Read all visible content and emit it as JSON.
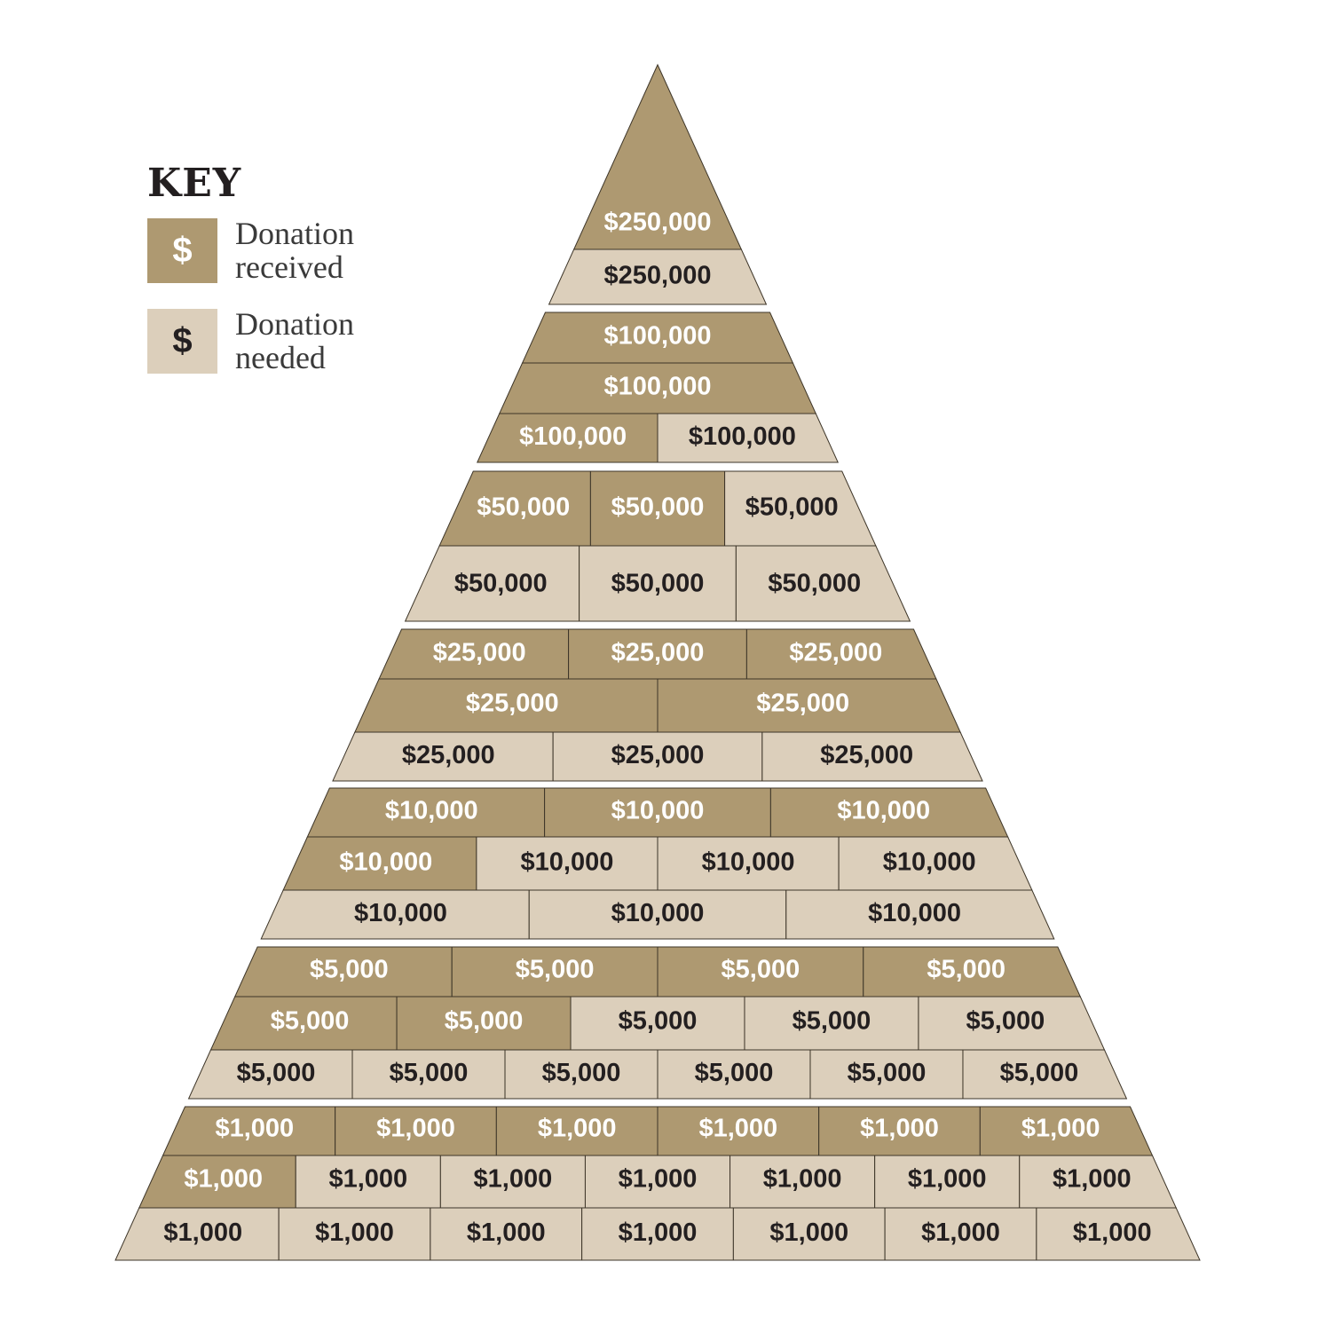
{
  "key": {
    "title": "KEY",
    "received": {
      "symbol": "$",
      "line1": "Donation",
      "line2": "received"
    },
    "needed": {
      "symbol": "$",
      "line1": "Donation",
      "line2": "needed"
    }
  },
  "colors": {
    "received": "#ae9971",
    "needed": "#dccfbb",
    "received_text": "#ffffff",
    "needed_text": "#231f20",
    "divider": "#3d3528"
  },
  "chart_data": {
    "type": "table",
    "tiers": [
      {
        "amount": "$250,000",
        "rows": [
          [
            "r"
          ],
          [
            "n"
          ]
        ]
      },
      {
        "amount": "$100,000",
        "rows": [
          [
            "r"
          ],
          [
            "r"
          ],
          [
            "r",
            "n"
          ]
        ]
      },
      {
        "amount": "$50,000",
        "rows": [
          [
            "r",
            "r",
            "n"
          ],
          [
            "n",
            "n",
            "n"
          ]
        ]
      },
      {
        "amount": "$25,000",
        "rows": [
          [
            "r",
            "r",
            "r"
          ],
          [
            "r",
            "r"
          ],
          [
            "n",
            "n",
            "n"
          ]
        ]
      },
      {
        "amount": "$10,000",
        "rows": [
          [
            "r",
            "r",
            "r"
          ],
          [
            "r",
            "n",
            "n",
            "n"
          ],
          [
            "n",
            "n",
            "n"
          ]
        ]
      },
      {
        "amount": "$5,000",
        "rows": [
          [
            "r",
            "r",
            "r",
            "r"
          ],
          [
            "r",
            "r",
            "n",
            "n",
            "n"
          ],
          [
            "n",
            "n",
            "n",
            "n",
            "n",
            "n"
          ]
        ]
      },
      {
        "amount": "$1,000",
        "rows": [
          [
            "r",
            "r",
            "r",
            "r",
            "r",
            "r"
          ],
          [
            "r",
            "n",
            "n",
            "n",
            "n",
            "n",
            "n"
          ],
          [
            "n",
            "n",
            "n",
            "n",
            "n",
            "n",
            "n"
          ]
        ]
      }
    ]
  }
}
